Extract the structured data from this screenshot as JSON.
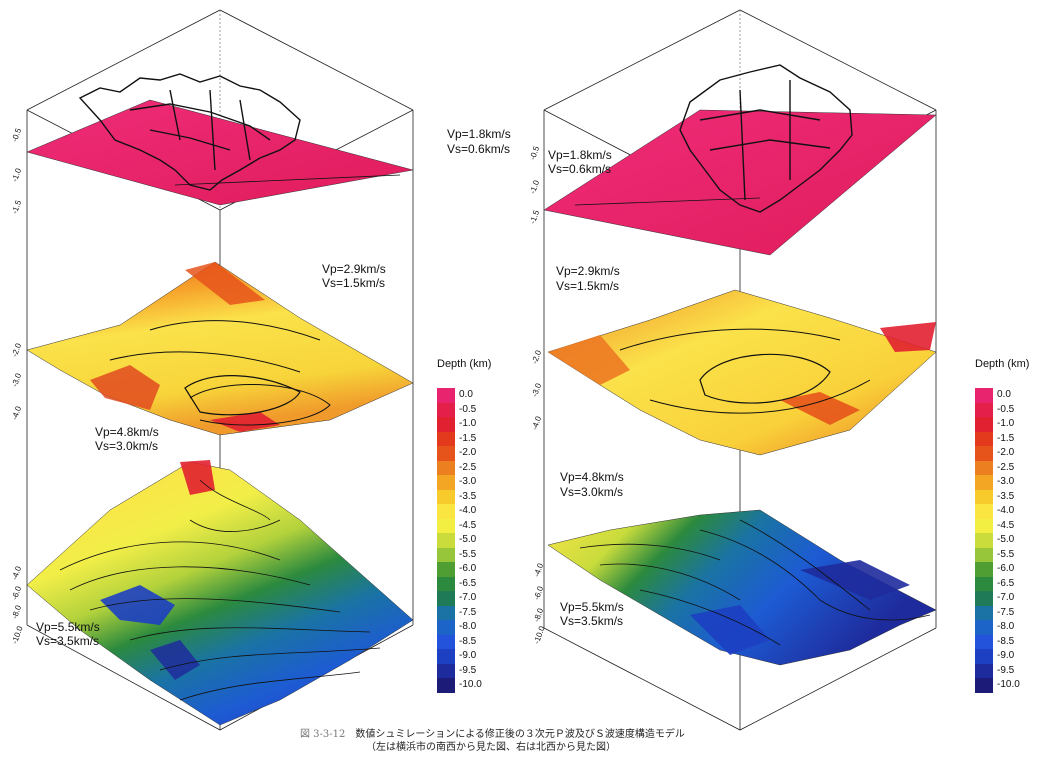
{
  "left_model": {
    "layers": [
      {
        "vp": "Vp=1.8km/s",
        "vs": "Vs=0.6km/s"
      },
      {
        "vp": "Vp=2.9km/s",
        "vs": "Vs=1.5km/s"
      },
      {
        "vp": "Vp=4.8km/s",
        "vs": "Vs=3.0km/s"
      },
      {
        "vp": "Vp=5.5km/s",
        "vs": "Vs=3.5km/s"
      }
    ],
    "axis_ticks": [
      "-0.5",
      "-1.0",
      "-1.5",
      "-2.0",
      "-3.0",
      "-4.0",
      "-4.0",
      "-6.0",
      "-8.0",
      "-10.0"
    ]
  },
  "right_model": {
    "layers": [
      {
        "vp": "Vp=1.8km/s",
        "vs": "Vs=0.6km/s"
      },
      {
        "vp": "Vp=2.9km/s",
        "vs": "Vs=1.5km/s"
      },
      {
        "vp": "Vp=4.8km/s",
        "vs": "Vs=3.0km/s"
      },
      {
        "vp": "Vp=5.5km/s",
        "vs": "Vs=3.5km/s"
      }
    ],
    "axis_ticks": [
      "-0.5",
      "-1.0",
      "-1.5",
      "-2.0",
      "-3.0",
      "-4.0",
      "-4.0",
      "-6.0",
      "-8.0",
      "-10.0"
    ]
  },
  "legend": {
    "title": "Depth (km)",
    "levels": [
      "0.0",
      "-0.5",
      "-1.0",
      "-1.5",
      "-2.0",
      "-2.5",
      "-3.0",
      "-3.5",
      "-4.0",
      "-4.5",
      "-5.0",
      "-5.5",
      "-6.0",
      "-6.5",
      "-7.0",
      "-7.5",
      "-8.0",
      "-8.5",
      "-9.0",
      "-9.5",
      "-10.0"
    ],
    "colors": [
      "#e8246e",
      "#e41f4a",
      "#e12030",
      "#e33a1e",
      "#e6541b",
      "#ec7f1f",
      "#f3a524",
      "#f7cb2c",
      "#fbe641",
      "#f3ef42",
      "#c9dc3c",
      "#98c63a",
      "#4f9e34",
      "#2c8a3e",
      "#1f7a57",
      "#1a73a4",
      "#1d64c9",
      "#2253da",
      "#1d3fc2",
      "#1e2b9c",
      "#1c1c78"
    ]
  },
  "caption": {
    "fig_no": "図 3-3-12",
    "line1": "数値シュミレーションによる修正後の３次元Ｐ波及びＳ波速度構造モデル",
    "line2": "（左は横浜市の南西から見た図、右は北西から見た図）"
  }
}
